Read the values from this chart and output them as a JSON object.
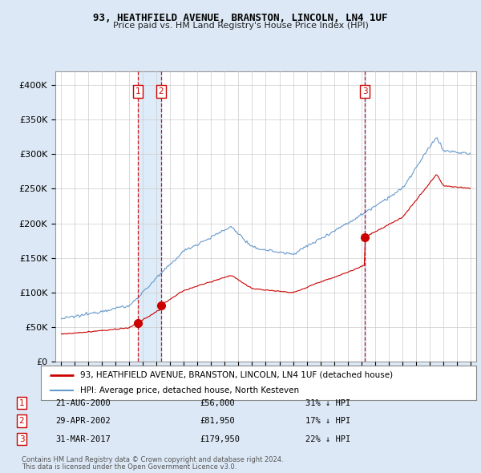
{
  "title1": "93, HEATHFIELD AVENUE, BRANSTON, LINCOLN, LN4 1UF",
  "title2": "Price paid vs. HM Land Registry's House Price Index (HPI)",
  "legend_line1": "93, HEATHFIELD AVENUE, BRANSTON, LINCOLN, LN4 1UF (detached house)",
  "legend_line2": "HPI: Average price, detached house, North Kesteven",
  "footer1": "Contains HM Land Registry data © Crown copyright and database right 2024.",
  "footer2": "This data is licensed under the Open Government Licence v3.0.",
  "transactions": [
    {
      "num": 1,
      "date": "21-AUG-2000",
      "price": "£56,000",
      "note": "31% ↓ HPI",
      "year": 2000.635
    },
    {
      "num": 2,
      "date": "29-APR-2002",
      "price": "£81,950",
      "note": "17% ↓ HPI",
      "year": 2002.325
    },
    {
      "num": 3,
      "date": "31-MAR-2017",
      "price": "£179,950",
      "note": "22% ↓ HPI",
      "year": 2017.247
    }
  ],
  "vline_color": "#cc0000",
  "hpi_color": "#6699cc",
  "price_color": "#cc0000",
  "marker_color": "#cc0000",
  "box_color": "#cc0000",
  "background_color": "#dce8f5",
  "fill_color": "#d0e4f7",
  "plot_bg": "#ffffff",
  "ylim": [
    0,
    420000
  ],
  "xlim_start": 1994.6,
  "xlim_end": 2025.4,
  "yticks": [
    0,
    50000,
    100000,
    150000,
    200000,
    250000,
    300000,
    350000,
    400000
  ],
  "ytick_labels": [
    "£0",
    "£50K",
    "£100K",
    "£150K",
    "£200K",
    "£250K",
    "£300K",
    "£350K",
    "£400K"
  ],
  "xticks": [
    1995,
    1996,
    1997,
    1998,
    1999,
    2000,
    2001,
    2002,
    2003,
    2004,
    2005,
    2006,
    2007,
    2008,
    2009,
    2010,
    2011,
    2012,
    2013,
    2014,
    2015,
    2016,
    2017,
    2018,
    2019,
    2020,
    2021,
    2022,
    2023,
    2024,
    2025
  ]
}
